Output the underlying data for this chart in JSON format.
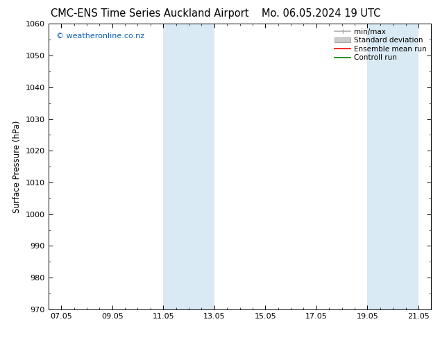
{
  "title_left": "CMC-ENS Time Series Auckland Airport",
  "title_right": "Mo. 06.05.2024 19 UTC",
  "ylabel": "Surface Pressure (hPa)",
  "xlabel": "",
  "ylim": [
    970,
    1060
  ],
  "yticks": [
    970,
    980,
    990,
    1000,
    1010,
    1020,
    1030,
    1040,
    1050,
    1060
  ],
  "xtick_labels": [
    "07.05",
    "09.05",
    "11.05",
    "13.05",
    "15.05",
    "17.05",
    "19.05",
    "21.05"
  ],
  "xtick_positions": [
    0,
    2,
    4,
    6,
    8,
    10,
    12,
    14
  ],
  "xlim": [
    -0.5,
    14.5
  ],
  "shaded_bands": [
    {
      "x_start": 4,
      "x_end": 6
    },
    {
      "x_start": 12,
      "x_end": 14
    }
  ],
  "shade_color": "#daeaf5",
  "watermark_text": "© weatheronline.co.nz",
  "watermark_color": "#1060c0",
  "legend_entries": [
    {
      "label": "min/max",
      "color": "#aaaaaa",
      "lw": 1.2,
      "style": "minmax"
    },
    {
      "label": "Standard deviation",
      "color": "#cccccc",
      "lw": 5,
      "style": "band"
    },
    {
      "label": "Ensemble mean run",
      "color": "red",
      "lw": 1.2,
      "style": "line"
    },
    {
      "label": "Controll run",
      "color": "green",
      "lw": 1.2,
      "style": "line"
    }
  ],
  "bg_color": "#ffffff",
  "tick_color": "#000000",
  "title_fontsize": 10.5,
  "axis_label_fontsize": 8.5,
  "tick_fontsize": 8,
  "legend_fontsize": 7.5,
  "watermark_fontsize": 8
}
